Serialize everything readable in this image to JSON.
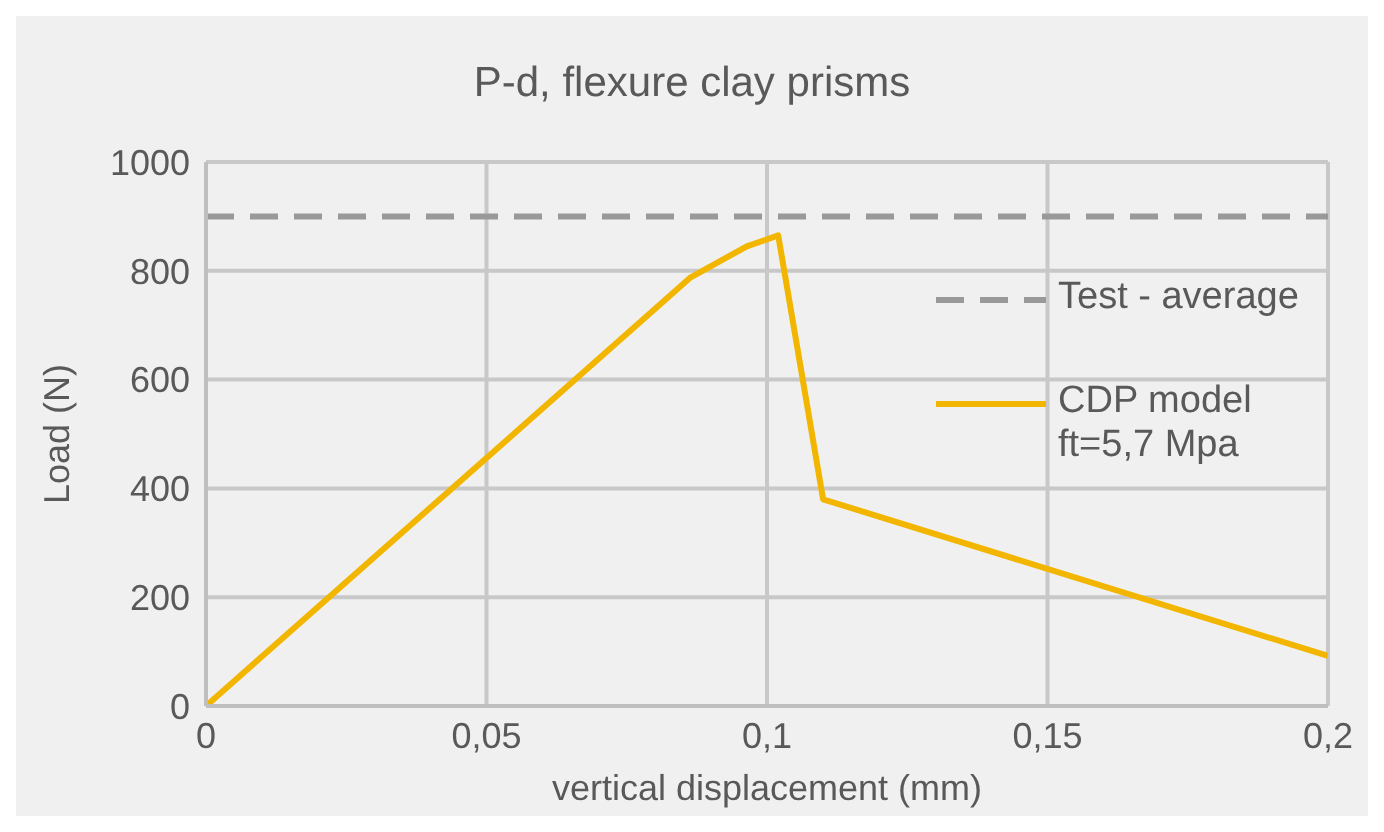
{
  "chart_data": {
    "type": "line",
    "title": "P-d, flexure clay prisms",
    "xlabel": "vertical displacement (mm)",
    "ylabel": "Load (N)",
    "xlim": [
      0,
      0.2
    ],
    "xticks": [
      0,
      {
        "value": 0.05,
        "label": "0,05"
      },
      {
        "value": 0.1,
        "label": "0,1"
      },
      {
        "value": 0.15,
        "label": "0,15"
      },
      {
        "value": 0.2,
        "label": "0,2"
      }
    ],
    "ylim": [
      0,
      1000
    ],
    "yticks": [
      0,
      200,
      400,
      600,
      800,
      1000
    ],
    "grid": true,
    "legend": "right",
    "marker": "none",
    "series": [
      {
        "name": "Test - average",
        "color": "#999999",
        "line_style": "dashed",
        "x": [
          0,
          0.2
        ],
        "values": [
          900,
          900
        ]
      },
      {
        "name": "CDP model ft=5,7 Mpa",
        "color": "#f2b600",
        "line_style": "solid",
        "x": [
          0,
          0.05,
          0.0864,
          0.0964,
          0.102,
          0.11,
          0.2
        ],
        "values": [
          0,
          456,
          788,
          845,
          865,
          380,
          92
        ]
      }
    ]
  }
}
